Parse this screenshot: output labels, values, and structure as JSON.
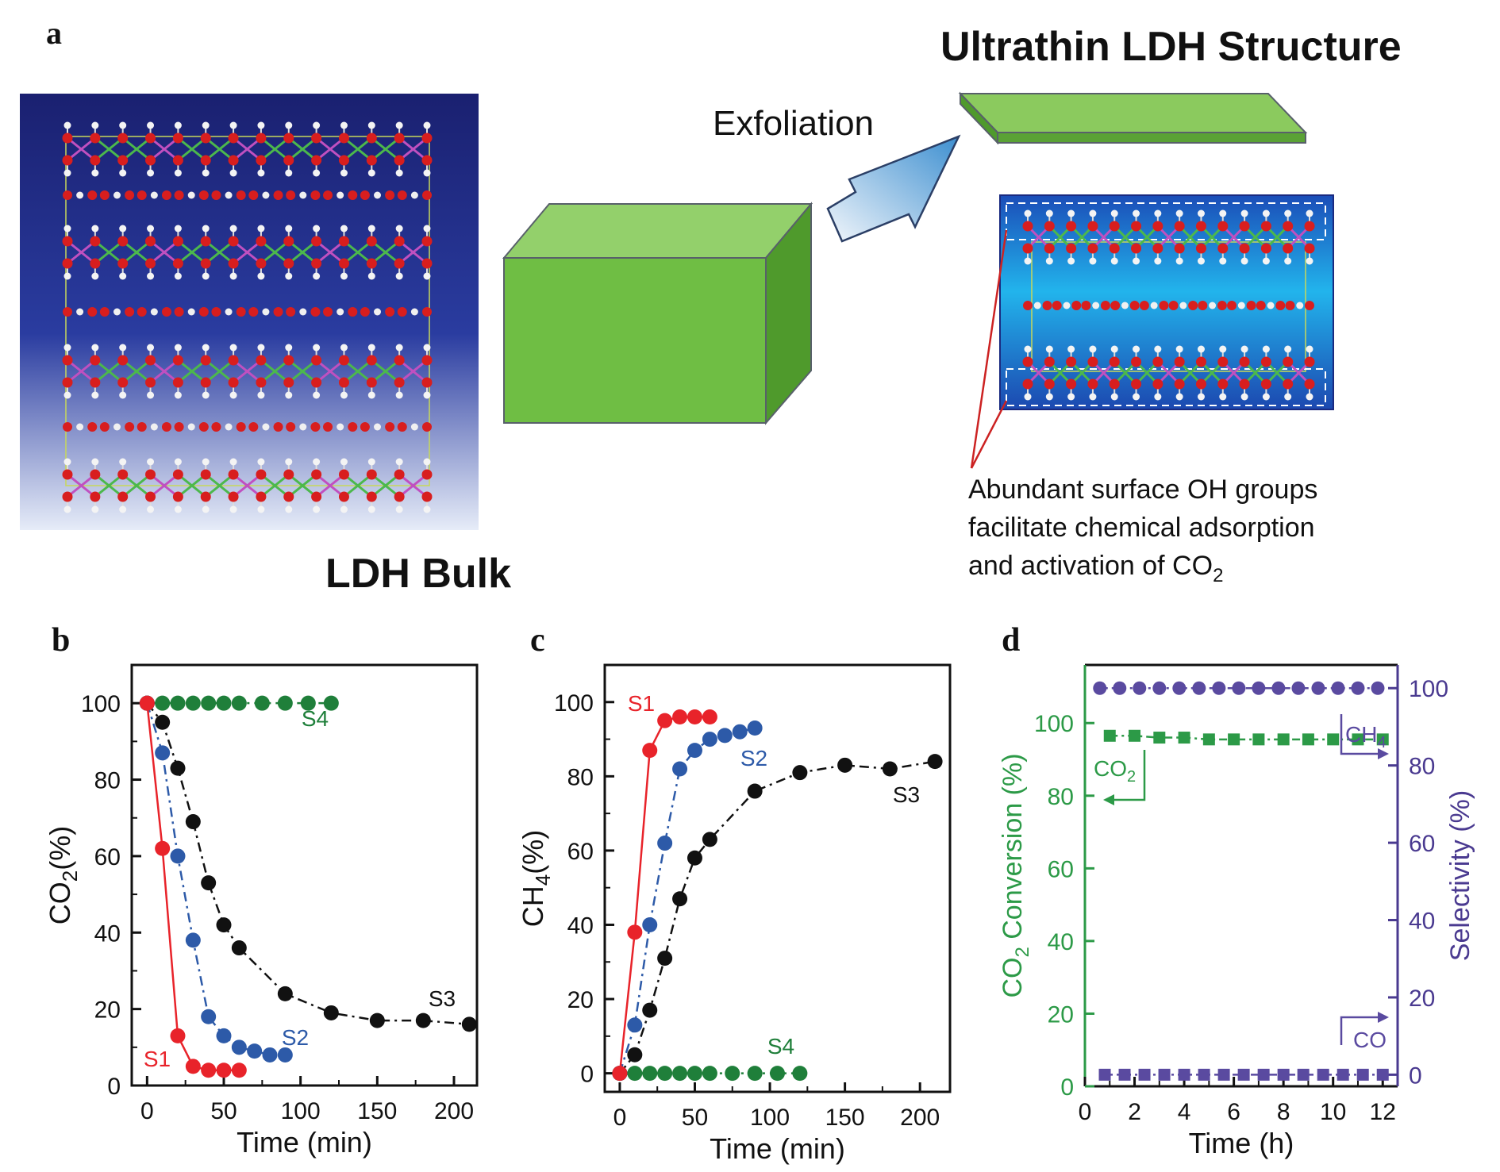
{
  "panel_a": {
    "letter": "a",
    "bulk_label": "LDH Bulk",
    "exfoliation_label": "Exfoliation",
    "ultrathin_title": "Ultrathin LDH Structure",
    "caption_lines": [
      "Abundant surface OH groups",
      "facilitate chemical adsorption",
      "and activation of CO",
      "2"
    ],
    "colors": {
      "block_front": "#6fbe44",
      "block_top": "#94d06a",
      "block_side": "#4f9a2c",
      "arrow": "#5aa5d6",
      "bulk_bg": "#1e2c8a",
      "thin_bg": "#1a9fe0",
      "leader_line": "#cc2222"
    }
  },
  "chart_data": [
    {
      "panel": "b",
      "type": "line",
      "ylabel_main": "CO",
      "ylabel_sub": "2",
      "ylabel_tail": "(%)",
      "xlabel": "Time (min)",
      "xlim": [
        -10,
        215
      ],
      "ylim": [
        0,
        110
      ],
      "xticks": [
        0,
        50,
        100,
        150,
        200
      ],
      "yticks": [
        0,
        20,
        40,
        60,
        80,
        100
      ],
      "series": [
        {
          "name": "S1",
          "color": "#e8232a",
          "x": [
            0,
            10,
            20,
            30,
            40,
            50,
            60
          ],
          "y": [
            100,
            62,
            13,
            5,
            4,
            4,
            4
          ]
        },
        {
          "name": "S2",
          "color": "#2d5aa8",
          "x": [
            0,
            10,
            20,
            30,
            40,
            50,
            60,
            70,
            80,
            90
          ],
          "y": [
            100,
            87,
            60,
            38,
            18,
            13,
            10,
            9,
            8,
            8
          ]
        },
        {
          "name": "S3",
          "color": "#111111",
          "x": [
            0,
            10,
            20,
            30,
            40,
            50,
            60,
            90,
            120,
            150,
            180,
            210
          ],
          "y": [
            100,
            95,
            83,
            69,
            53,
            42,
            36,
            24,
            19,
            17,
            17,
            16
          ]
        },
        {
          "name": "S4",
          "color": "#1f7f3a",
          "x": [
            0,
            10,
            20,
            30,
            40,
            50,
            60,
            75,
            90,
            105,
            120
          ],
          "y": [
            100,
            100,
            100,
            100,
            100,
            100,
            100,
            100,
            100,
            100,
            100
          ]
        }
      ]
    },
    {
      "panel": "c",
      "type": "line",
      "ylabel_main": "CH",
      "ylabel_sub": "4",
      "ylabel_tail": "(%)",
      "xlabel": "Time (min)",
      "xlim": [
        -10,
        220
      ],
      "ylim": [
        -5,
        110
      ],
      "xticks": [
        0,
        50,
        100,
        150,
        200
      ],
      "yticks": [
        0,
        20,
        40,
        60,
        80,
        100
      ],
      "series": [
        {
          "name": "S1",
          "color": "#e8232a",
          "x": [
            0,
            10,
            20,
            30,
            40,
            50,
            60
          ],
          "y": [
            0,
            38,
            87,
            95,
            96,
            96,
            96
          ]
        },
        {
          "name": "S2",
          "color": "#2d5aa8",
          "x": [
            0,
            10,
            20,
            30,
            40,
            50,
            60,
            70,
            80,
            90
          ],
          "y": [
            0,
            13,
            40,
            62,
            82,
            87,
            90,
            91,
            92,
            93
          ]
        },
        {
          "name": "S3",
          "color": "#111111",
          "x": [
            0,
            10,
            20,
            30,
            40,
            50,
            60,
            90,
            120,
            150,
            180,
            210
          ],
          "y": [
            0,
            5,
            17,
            31,
            47,
            58,
            63,
            76,
            81,
            83,
            82,
            84
          ]
        },
        {
          "name": "S4",
          "color": "#1f7f3a",
          "x": [
            0,
            10,
            20,
            30,
            40,
            50,
            60,
            75,
            90,
            105,
            120
          ],
          "y": [
            0,
            0,
            0,
            0,
            0,
            0,
            0,
            0,
            0,
            0,
            0
          ]
        }
      ]
    },
    {
      "panel": "d",
      "type": "scatter",
      "xlabel": "Time (h)",
      "ylabel_left_pre": "CO",
      "ylabel_left_sub": "2",
      "ylabel_left_post": " Conversion (%)",
      "ylabel_right": "Selectivity (%)",
      "xlim": [
        0,
        12.6
      ],
      "ylim_left": [
        0,
        116
      ],
      "ylim_right": [
        -3,
        106
      ],
      "xticks": [
        0,
        2,
        4,
        6,
        8,
        10,
        12
      ],
      "yticks_left": [
        0,
        20,
        40,
        60,
        80,
        100
      ],
      "yticks_right": [
        0,
        20,
        40,
        60,
        80,
        100
      ],
      "series": [
        {
          "name": "CO2",
          "label_main": "CO",
          "label_sub": "2",
          "axis": "left",
          "marker": "square",
          "color": "#2c9a47",
          "x": [
            1,
            2,
            3,
            4,
            5,
            6,
            7,
            8,
            9,
            10,
            11,
            12
          ],
          "y": [
            96.5,
            96.5,
            96,
            96,
            95.5,
            95.5,
            95.5,
            95.5,
            95.5,
            95.5,
            95.5,
            95.5
          ]
        },
        {
          "name": "CH4",
          "label_main": "CH",
          "label_sub": "4",
          "axis": "right",
          "marker": "circle",
          "color": "#5a4aa0",
          "x": [
            0.6,
            1.4,
            2.2,
            3,
            3.8,
            4.6,
            5.4,
            6.2,
            7,
            7.8,
            8.6,
            9.4,
            10.2,
            11,
            11.8
          ],
          "y": [
            100,
            100,
            100,
            100,
            100,
            100,
            100,
            100,
            100,
            100,
            100,
            100,
            100,
            100,
            100
          ]
        },
        {
          "name": "CO",
          "label_main": "CO",
          "label_sub": "",
          "axis": "right",
          "marker": "square",
          "color": "#5a4aa0",
          "x": [
            0.8,
            1.6,
            2.4,
            3.2,
            4,
            4.8,
            5.6,
            6.4,
            7.2,
            8,
            8.8,
            9.6,
            10.4,
            11.2,
            12
          ],
          "y": [
            0,
            0,
            0,
            0,
            0,
            0,
            0,
            0,
            0,
            0,
            0,
            0,
            0,
            0,
            0
          ]
        }
      ]
    }
  ]
}
